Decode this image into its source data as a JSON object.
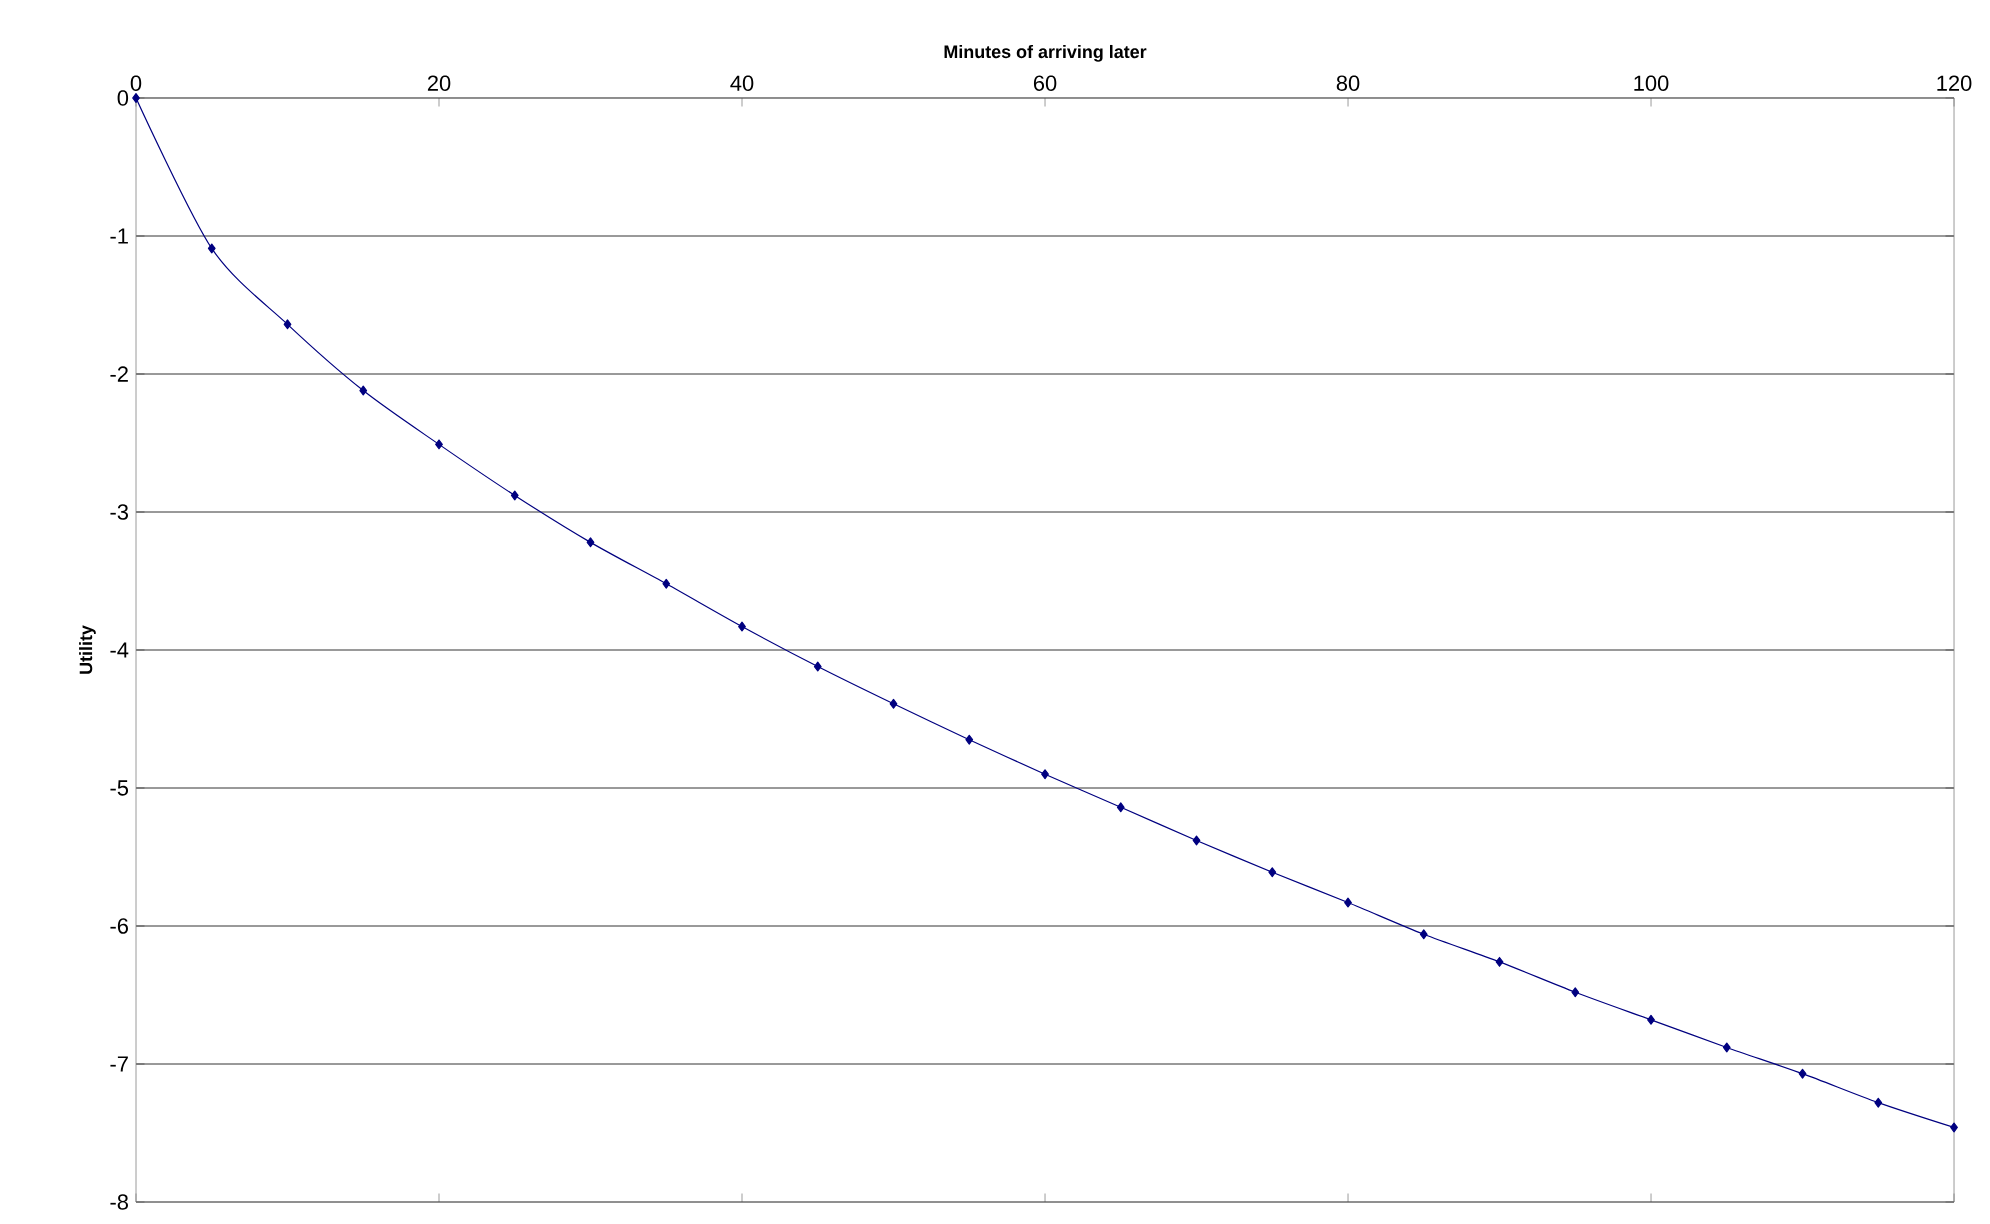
{
  "chart_data": {
    "type": "line",
    "xlabel": "Minutes of arriving later",
    "ylabel": "Utility",
    "x": [
      0,
      5,
      10,
      15,
      20,
      25,
      30,
      35,
      40,
      45,
      50,
      55,
      60,
      65,
      70,
      75,
      80,
      85,
      90,
      95,
      100,
      105,
      110,
      115,
      120
    ],
    "series": [
      {
        "color": "#000080",
        "values": [
          0,
          -1.09,
          -1.64,
          -2.12,
          -2.51,
          -2.88,
          -3.22,
          -3.52,
          -3.83,
          -4.12,
          -4.39,
          -4.65,
          -4.9,
          -5.14,
          -5.38,
          -5.61,
          -5.83,
          -6.06,
          -6.26,
          -6.48,
          -6.68,
          -6.88,
          -7.07,
          -7.28,
          -7.46
        ]
      }
    ],
    "xlim": [
      0,
      120
    ],
    "xticks": [
      0,
      20,
      40,
      60,
      80,
      100,
      120
    ],
    "ylim": [
      -8,
      0
    ],
    "yticks": [
      -8,
      -7,
      -6,
      -5,
      -4,
      -3,
      -2,
      -1,
      0
    ],
    "grid": "y",
    "marker": "diamond",
    "line_style": "solid"
  }
}
